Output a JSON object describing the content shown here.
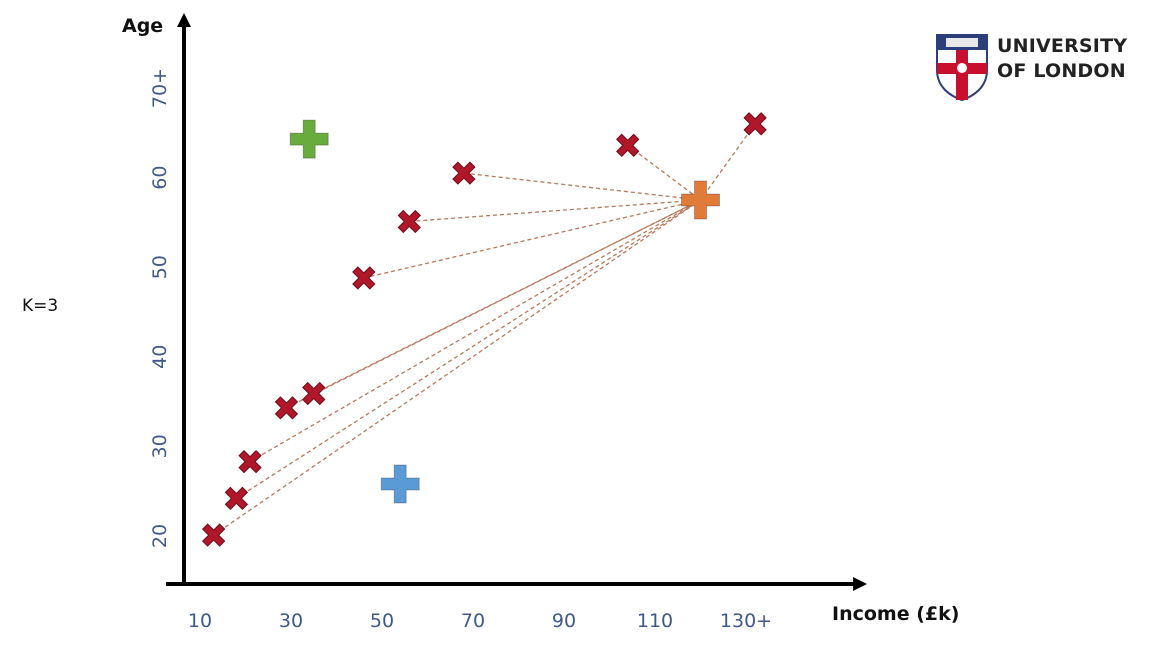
{
  "k_label": "K=3",
  "logo": {
    "line1": "UNIVERSITY",
    "line2": "OF LONDON"
  },
  "chart_data": {
    "type": "scatter",
    "xlabel": "Income (£k)",
    "ylabel": "Age",
    "x_ticks": [
      {
        "value": 10,
        "label": "10"
      },
      {
        "value": 30,
        "label": "30"
      },
      {
        "value": 50,
        "label": "50"
      },
      {
        "value": 70,
        "label": "70"
      },
      {
        "value": 90,
        "label": "90"
      },
      {
        "value": 110,
        "label": "110"
      },
      {
        "value": 130,
        "label": "130+"
      }
    ],
    "y_ticks": [
      {
        "value": 20,
        "label": "20"
      },
      {
        "value": 30,
        "label": "30"
      },
      {
        "value": 40,
        "label": "40"
      },
      {
        "value": 50,
        "label": "50"
      },
      {
        "value": 60,
        "label": "60"
      },
      {
        "value": 70,
        "label": "70+"
      }
    ],
    "xlim": [
      10,
      130
    ],
    "ylim": [
      20,
      70
    ],
    "grid": false,
    "points": [
      {
        "x": 13,
        "y": 20.1
      },
      {
        "x": 18,
        "y": 24.2
      },
      {
        "x": 21,
        "y": 28.3
      },
      {
        "x": 29,
        "y": 34.3
      },
      {
        "x": 35,
        "y": 35.9
      },
      {
        "x": 46,
        "y": 48.8
      },
      {
        "x": 56,
        "y": 55.1
      },
      {
        "x": 68,
        "y": 60.5
      },
      {
        "x": 104,
        "y": 63.6
      },
      {
        "x": 132,
        "y": 66.0
      }
    ],
    "centroids": [
      {
        "x": 34,
        "y": 64.3,
        "color": "#6aab3e"
      },
      {
        "x": 54,
        "y": 25.8,
        "color": "#5b9bd5"
      },
      {
        "x": 120,
        "y": 57.5,
        "color": "#e07b39"
      }
    ],
    "point_color": "#b0182a",
    "line_color": "#b9785a"
  }
}
